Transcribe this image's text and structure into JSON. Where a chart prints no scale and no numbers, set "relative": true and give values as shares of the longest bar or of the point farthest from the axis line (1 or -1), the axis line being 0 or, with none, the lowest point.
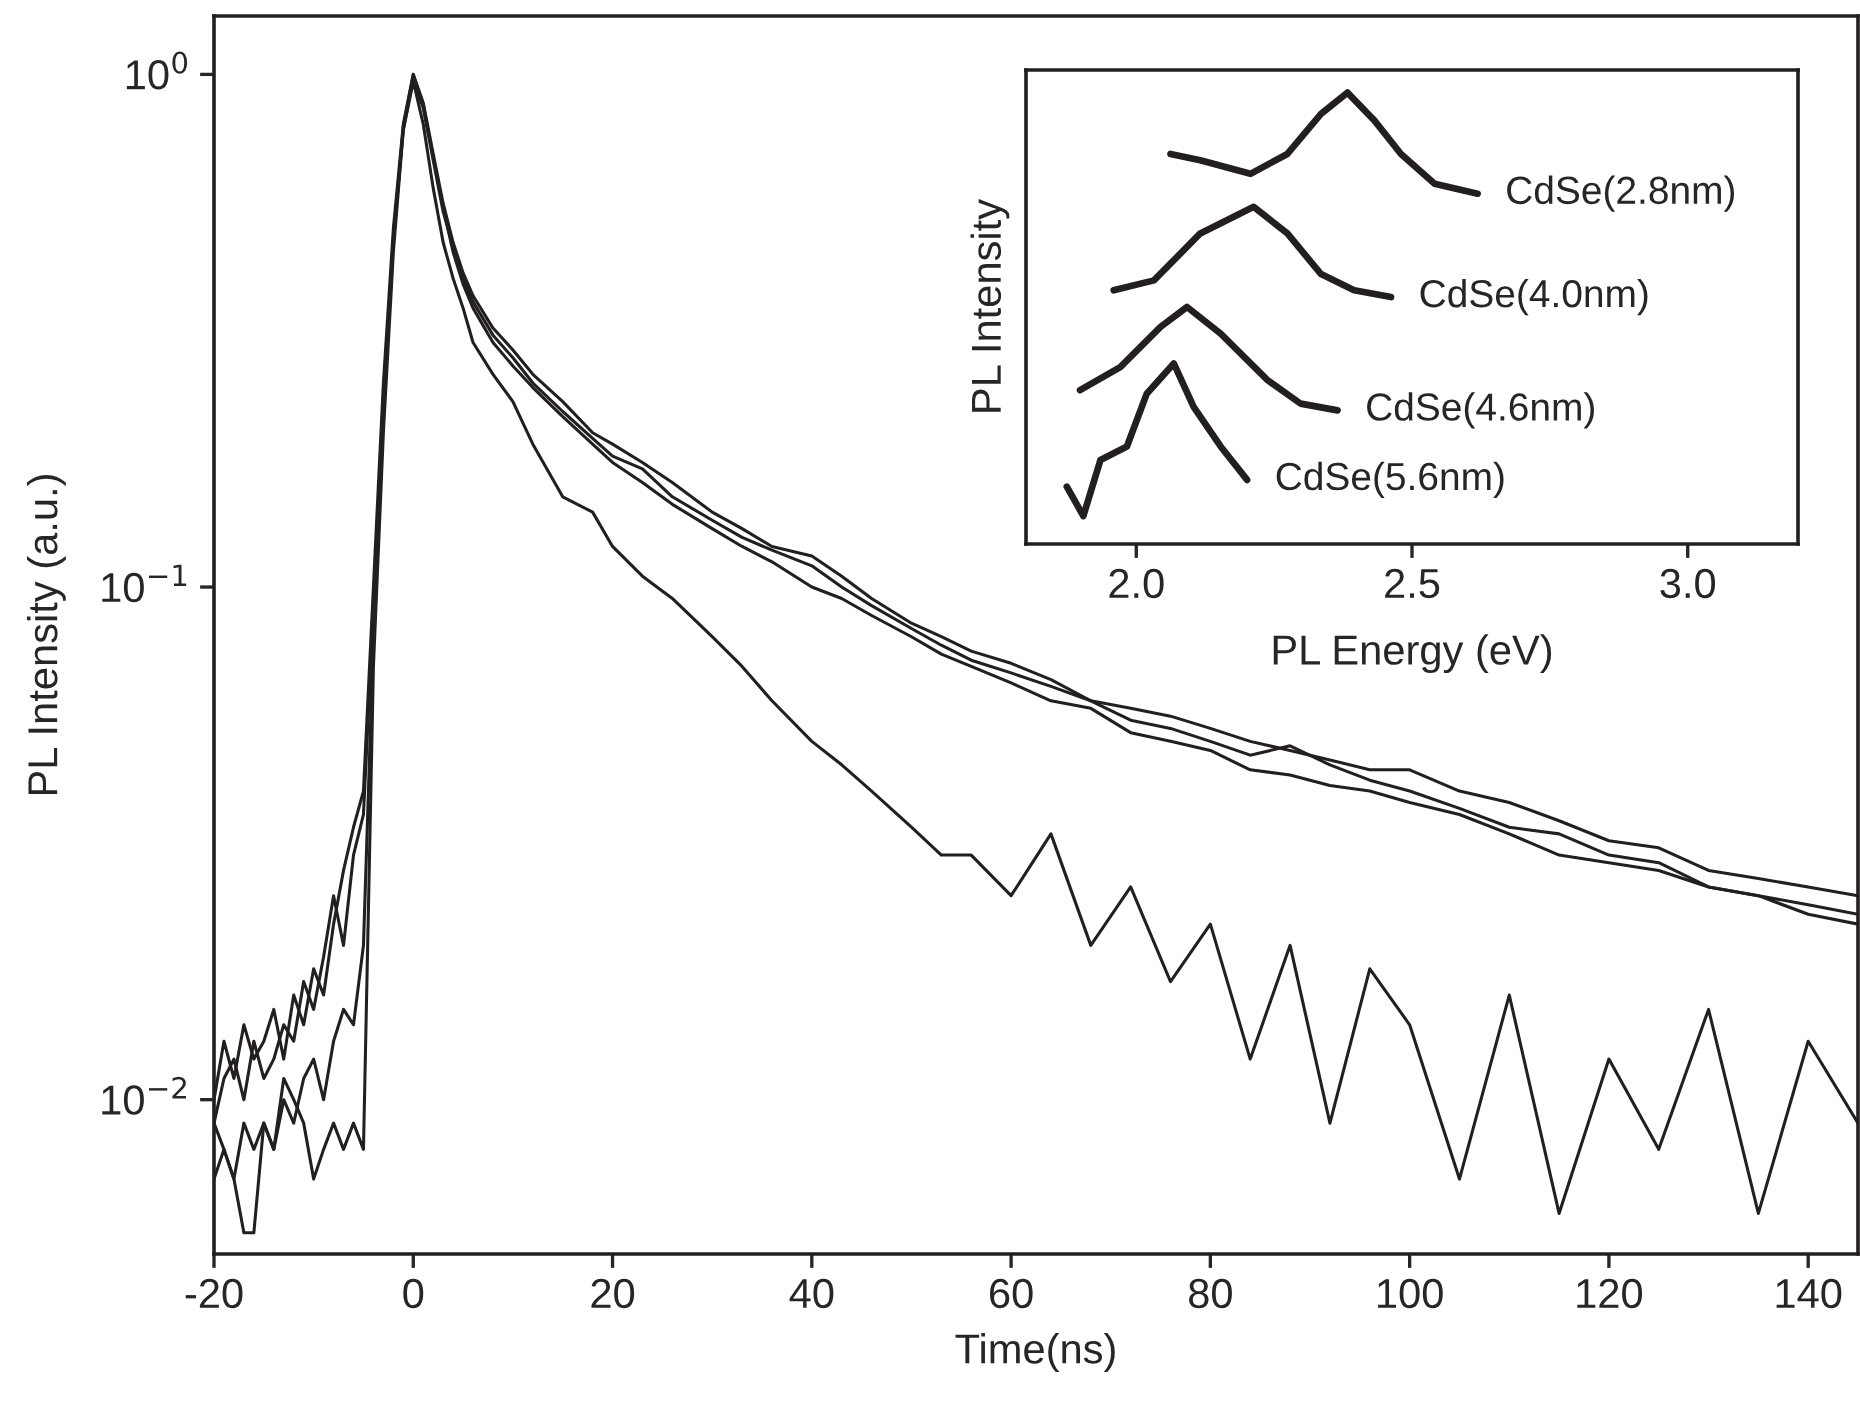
{
  "chart_data": [
    {
      "type": "line",
      "xlabel": "Time(ns)",
      "ylabel": "PL Intensity (a.u.)",
      "log": "y",
      "xlim": [
        -20,
        145
      ],
      "ylim": [
        0.005,
        1.3
      ],
      "xticks": [
        -20,
        0,
        20,
        40,
        60,
        80,
        100,
        120,
        140
      ],
      "yticks": [
        {
          "value": 0.01,
          "label": "10$^{−2}$"
        },
        {
          "value": 0.1,
          "label": "10$^{−1}$"
        },
        {
          "value": 1,
          "label": "10$^{0}$"
        }
      ],
      "x": [
        -20,
        -19,
        -18,
        -17,
        -16,
        -15,
        -14,
        -13,
        -12,
        -11,
        -10,
        -9,
        -8,
        -7,
        -6,
        -5,
        -4,
        -3,
        -2,
        -1,
        0,
        1,
        2,
        3,
        4,
        5,
        6,
        8,
        10,
        12,
        15,
        18,
        20,
        23,
        26,
        30,
        33,
        36,
        40,
        43,
        46,
        50,
        53,
        56,
        60,
        64,
        68,
        72,
        76,
        80,
        84,
        88,
        92,
        96,
        100,
        105,
        110,
        115,
        120,
        125,
        130,
        135,
        140,
        145
      ],
      "series": [
        {
          "color": "#231f20",
          "values": [
            0.01,
            0.013,
            0.011,
            0.014,
            0.012,
            0.013,
            0.015,
            0.012,
            0.016,
            0.014,
            0.018,
            0.016,
            0.022,
            0.028,
            0.034,
            0.04,
            0.1,
            0.25,
            0.5,
            0.8,
            1.0,
            0.88,
            0.7,
            0.56,
            0.47,
            0.41,
            0.37,
            0.32,
            0.29,
            0.26,
            0.23,
            0.2,
            0.19,
            0.175,
            0.16,
            0.14,
            0.13,
            0.12,
            0.115,
            0.105,
            0.095,
            0.085,
            0.08,
            0.075,
            0.071,
            0.066,
            0.06,
            0.058,
            0.056,
            0.053,
            0.05,
            0.048,
            0.046,
            0.044,
            0.044,
            0.04,
            0.038,
            0.035,
            0.032,
            0.031,
            0.028,
            0.027,
            0.026,
            0.025
          ]
        },
        {
          "color": "#231f20",
          "values": [
            0.009,
            0.011,
            0.012,
            0.01,
            0.013,
            0.011,
            0.012,
            0.014,
            0.013,
            0.017,
            0.015,
            0.019,
            0.025,
            0.02,
            0.03,
            0.036,
            0.09,
            0.23,
            0.48,
            0.78,
            0.98,
            0.86,
            0.68,
            0.54,
            0.46,
            0.4,
            0.36,
            0.31,
            0.28,
            0.25,
            0.22,
            0.195,
            0.18,
            0.17,
            0.15,
            0.135,
            0.125,
            0.118,
            0.11,
            0.1,
            0.092,
            0.083,
            0.077,
            0.072,
            0.068,
            0.064,
            0.06,
            0.055,
            0.053,
            0.05,
            0.047,
            0.049,
            0.045,
            0.042,
            0.04,
            0.037,
            0.034,
            0.033,
            0.03,
            0.029,
            0.026,
            0.025,
            0.024,
            0.023
          ]
        },
        {
          "color": "#231f20",
          "values": [
            0.007,
            0.008,
            0.007,
            0.009,
            0.008,
            0.009,
            0.008,
            0.01,
            0.009,
            0.011,
            0.012,
            0.01,
            0.013,
            0.015,
            0.014,
            0.02,
            0.08,
            0.22,
            0.47,
            0.79,
            1.0,
            0.87,
            0.69,
            0.55,
            0.45,
            0.39,
            0.35,
            0.3,
            0.27,
            0.245,
            0.215,
            0.19,
            0.175,
            0.16,
            0.145,
            0.13,
            0.12,
            0.112,
            0.1,
            0.095,
            0.088,
            0.08,
            0.074,
            0.07,
            0.065,
            0.06,
            0.058,
            0.052,
            0.05,
            0.048,
            0.044,
            0.043,
            0.041,
            0.04,
            0.038,
            0.036,
            0.033,
            0.03,
            0.029,
            0.028,
            0.026,
            0.025,
            0.023,
            0.022
          ]
        },
        {
          "color": "#231f20",
          "values": [
            0.009,
            0.008,
            0.007,
            0.0055,
            0.0055,
            0.009,
            0.008,
            0.011,
            0.01,
            0.009,
            0.007,
            0.008,
            0.009,
            0.008,
            0.009,
            0.008,
            0.07,
            0.2,
            0.45,
            0.78,
            0.97,
            0.8,
            0.6,
            0.47,
            0.4,
            0.35,
            0.3,
            0.26,
            0.23,
            0.19,
            0.15,
            0.14,
            0.12,
            0.105,
            0.095,
            0.08,
            0.07,
            0.06,
            0.05,
            0.045,
            0.04,
            0.034,
            0.03,
            0.03,
            0.025,
            0.033,
            0.02,
            0.026,
            0.017,
            0.022,
            0.012,
            0.02,
            0.009,
            0.018,
            0.014,
            0.007,
            0.016,
            0.006,
            0.012,
            0.008,
            0.015,
            0.006,
            0.013,
            0.009
          ]
        }
      ]
    },
    {
      "type": "line",
      "relative": true,
      "xlabel": "PL Energy (eV)",
      "ylabel": "PL Intensity",
      "xlim": [
        1.8,
        3.2
      ],
      "xticks": [
        {
          "value": 2,
          "label": "2.0"
        },
        2.5,
        {
          "value": 3,
          "label": "3.0"
        }
      ],
      "tick_labels": "x",
      "series": [
        {
          "name": "CdSe(2.8nm)",
          "color": "#231f20",
          "x": [
            2.062,
            2.116,
            2.207,
            2.274,
            2.335,
            2.383,
            2.432,
            2.48,
            2.541,
            2.619
          ],
          "values": [
            0.864,
            0.85,
            0.82,
            0.864,
            0.953,
            1.0,
            0.938,
            0.864,
            0.798,
            0.776
          ]
        },
        {
          "name": "CdSe(4.0nm)",
          "color": "#231f20",
          "x": [
            1.959,
            2.032,
            2.116,
            2.213,
            2.274,
            2.335,
            2.395,
            2.462
          ],
          "values": [
            0.562,
            0.584,
            0.688,
            0.747,
            0.688,
            0.598,
            0.562,
            0.547
          ]
        },
        {
          "name": "CdSe(4.6nm)",
          "color": "#231f20",
          "x": [
            1.898,
            1.971,
            2.044,
            2.092,
            2.153,
            2.238,
            2.298,
            2.365
          ],
          "values": [
            0.341,
            0.392,
            0.481,
            0.525,
            0.466,
            0.363,
            0.311,
            0.296
          ]
        },
        {
          "name": "CdSe(5.6nm)",
          "color": "#231f20",
          "x": [
            1.874,
            1.904,
            1.935,
            1.983,
            2.019,
            2.068,
            2.104,
            2.153,
            2.201
          ],
          "values": [
            0.127,
            0.062,
            0.186,
            0.216,
            0.333,
            0.4,
            0.304,
            0.216,
            0.142
          ]
        }
      ]
    }
  ]
}
